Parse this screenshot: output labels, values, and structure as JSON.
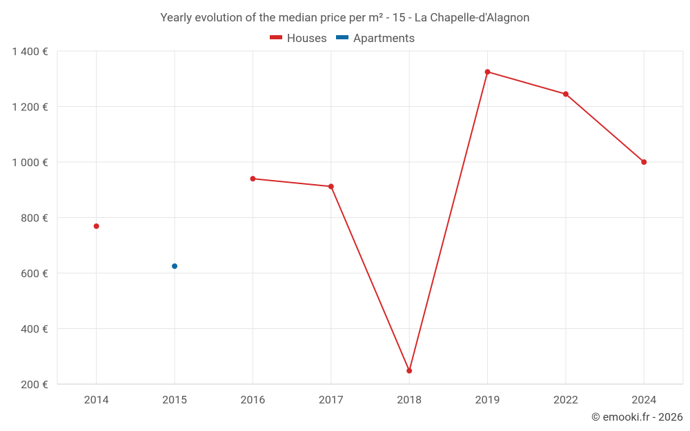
{
  "chart_data": {
    "type": "line",
    "title": "Yearly evolution of the median price per m² - 15 - La Chapelle-d'Alagnon",
    "categories": [
      "2014",
      "2015",
      "2016",
      "2017",
      "2018",
      "2019",
      "2022",
      "2024"
    ],
    "series": [
      {
        "name": "Houses",
        "color": "#d62728",
        "values": [
          769,
          null,
          940,
          912,
          248,
          1325,
          1245,
          1000
        ]
      },
      {
        "name": "Apartments",
        "color": "#0f6aa3",
        "values": [
          null,
          625,
          null,
          null,
          null,
          null,
          null,
          null
        ]
      }
    ],
    "yticks": [
      "200 €",
      "400 €",
      "600 €",
      "800 €",
      "1 000 €",
      "1 200 €",
      "1 400 €"
    ],
    "ylim": [
      200,
      1400
    ],
    "grid": true,
    "legend_position": "top-center"
  },
  "credit": "© emooki.fr - 2026"
}
